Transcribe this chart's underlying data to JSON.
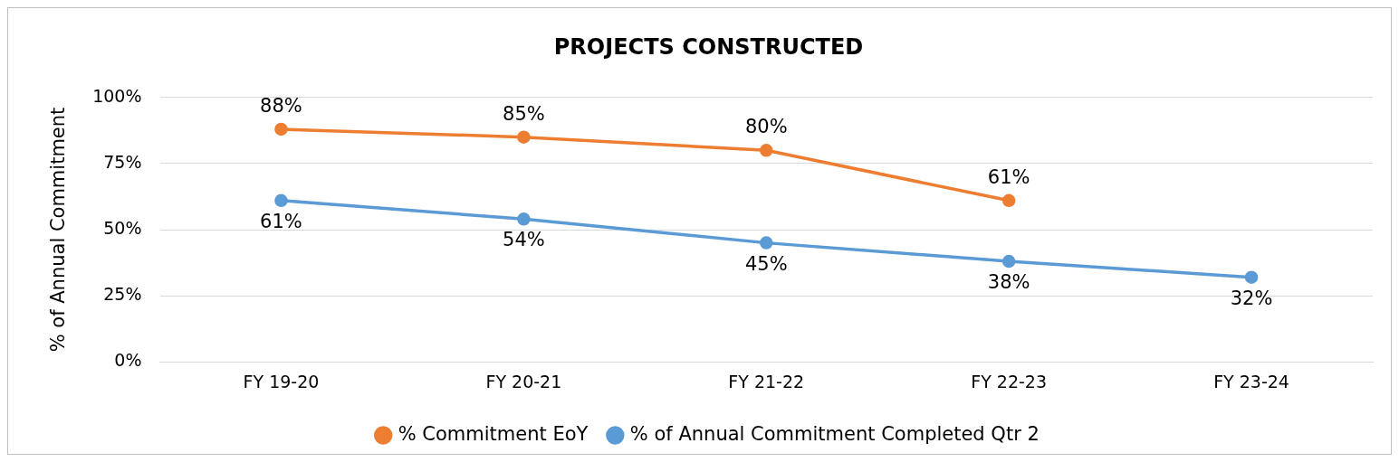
{
  "chart_data": {
    "type": "line",
    "title": "PROJECTS CONSTRUCTED",
    "ylabel": "% of Annual Commitment",
    "categories": [
      "FY 19-20",
      "FY 20-21",
      "FY 21-22",
      "FY 22-23",
      "FY 23-24"
    ],
    "series": [
      {
        "name": "% Commitment EoY",
        "color": "#ed7d31",
        "values": [
          88,
          85,
          80,
          61,
          null
        ],
        "value_labels": [
          "88%",
          "85%",
          "80%",
          "61%",
          null
        ]
      },
      {
        "name": "% of Annual Commitment Completed Qtr 2",
        "color": "#5b9bd5",
        "values": [
          61,
          54,
          45,
          38,
          32
        ],
        "value_labels": [
          "61%",
          "54%",
          "45%",
          "38%",
          "32%"
        ]
      }
    ],
    "ylim": [
      0,
      100
    ],
    "yticks": [
      {
        "value": 0,
        "label": "0%"
      },
      {
        "value": 25,
        "label": "25%"
      },
      {
        "value": 50,
        "label": "50%"
      },
      {
        "value": 75,
        "label": "75%"
      },
      {
        "value": 100,
        "label": "100%"
      }
    ],
    "grid": "y",
    "legend": "bottom",
    "marker": "circle",
    "line_style": "solid"
  }
}
